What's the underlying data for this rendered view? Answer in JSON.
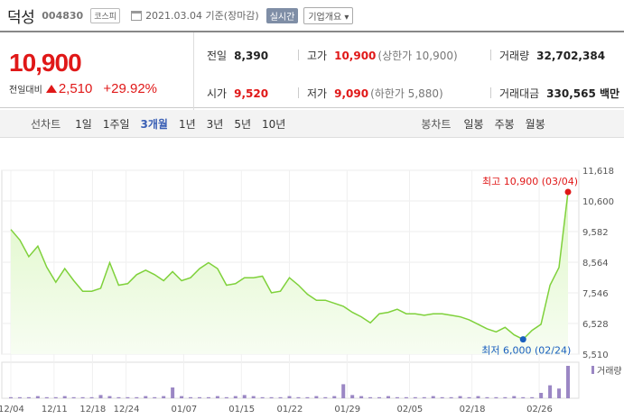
{
  "header": {
    "stock_name": "덕성",
    "stock_code": "004830",
    "market_badge": "코스피",
    "date_text": "2021.03.04  기준(장마감)",
    "realtime_button": "실시간",
    "company_info_button": "기업개요 ▾"
  },
  "price": {
    "current": "10,900",
    "change_label": "전일대비",
    "change_amount": "2,510",
    "change_pct": "+29.92%"
  },
  "stats": {
    "prev_label": "전일",
    "prev_value": "8,390",
    "high_label": "고가",
    "high_value": "10,900",
    "high_sub": "(상한가 10,900)",
    "volume_label": "거래량",
    "volume_value": "32,702,384",
    "open_label": "시가",
    "open_value": "9,520",
    "low_label": "저가",
    "low_value": "9,090",
    "low_sub": "(하한가 5,880)",
    "amount_label": "거래대금",
    "amount_value": "330,565 백만"
  },
  "period_bar": {
    "line_chart_label": "선차트",
    "line_periods": [
      "1일",
      "1주일",
      "3개월",
      "1년",
      "3년",
      "5년",
      "10년"
    ],
    "selected_period": "3개월",
    "candle_chart_label": "봉차트",
    "candle_periods": [
      "일봉",
      "주봉",
      "월봉"
    ]
  },
  "chart_data": {
    "type": "area",
    "title": "",
    "ylim": [
      5510,
      11618
    ],
    "y_ticks": [
      "11,618",
      "10,600",
      "9,582",
      "8,564",
      "7,546",
      "6,528",
      "5,510"
    ],
    "x_ticks": [
      "12/04",
      "12/11",
      "12/18",
      "12/24",
      "01/07",
      "01/15",
      "01/22",
      "01/29",
      "02/05",
      "02/18",
      "02/26"
    ],
    "values": [
      9650,
      9300,
      8750,
      9100,
      8400,
      7900,
      8350,
      7950,
      7600,
      7600,
      7700,
      8550,
      7800,
      7850,
      8150,
      8300,
      8150,
      7950,
      8250,
      7950,
      8050,
      8350,
      8550,
      8350,
      7800,
      7850,
      8050,
      8050,
      8100,
      7550,
      7600,
      8050,
      7800,
      7500,
      7300,
      7300,
      7200,
      7100,
      6900,
      6750,
      6550,
      6850,
      6900,
      7000,
      6850,
      6850,
      6800,
      6850,
      6850,
      6800,
      6750,
      6650,
      6500,
      6350,
      6250,
      6400,
      6150,
      6000,
      6300,
      6500,
      7800,
      8390,
      10900
    ],
    "max_label": "최고 10,900 (03/04)",
    "min_label": "최저 6,000 (02/24)",
    "volume_label": "거래량",
    "volume_values": [
      1,
      1,
      1,
      2,
      1,
      1,
      2,
      1,
      1,
      1,
      3,
      2,
      1,
      1,
      1,
      2,
      1,
      2,
      10,
      2,
      1,
      1,
      1,
      2,
      1,
      2,
      3,
      2,
      1,
      1,
      1,
      2,
      1,
      1,
      2,
      1,
      2,
      13,
      3,
      2,
      1,
      1,
      2,
      1,
      1,
      1,
      1,
      2,
      1,
      1,
      2,
      1,
      2,
      1,
      1,
      1,
      2,
      1,
      1,
      5,
      12,
      9,
      30
    ],
    "colors": {
      "line": "#7fd13b",
      "fill_top": "#dff7c8",
      "up": "#e01818",
      "down": "#1a5fbf",
      "volume": "#9b87c4"
    }
  }
}
